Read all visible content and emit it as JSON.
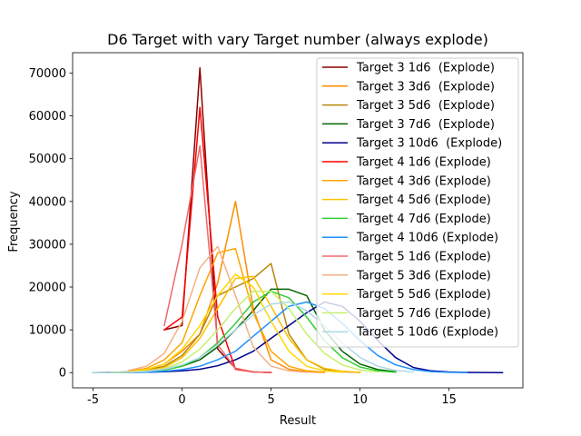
{
  "chart_data": {
    "type": "line",
    "title": "D6 Target with vary Target number (always explode)",
    "xlabel": "Result",
    "ylabel": "Frequency",
    "xlim": [
      -6.15,
      19.15
    ],
    "ylim": [
      -3560,
      74770
    ],
    "xticks": [
      -5,
      0,
      5,
      10,
      15
    ],
    "yticks": [
      0,
      10000,
      20000,
      30000,
      40000,
      50000,
      60000,
      70000
    ],
    "legend_position": "top-right",
    "grid": false,
    "series": [
      {
        "name": "Target 3 1d6  (Explode)",
        "color": "#8b0000",
        "x": [
          -1,
          0,
          1,
          2,
          3,
          4,
          5
        ],
        "y": [
          10000,
          11000,
          71200,
          5500,
          1000,
          150,
          20
        ]
      },
      {
        "name": "Target 3 3d6  (Explode)",
        "color": "#ff8c00",
        "x": [
          -3,
          -2,
          -1,
          0,
          1,
          2,
          3,
          4,
          5,
          6,
          7,
          8
        ],
        "y": [
          200,
          700,
          2000,
          5000,
          9000,
          21000,
          40000,
          15000,
          3000,
          800,
          200,
          50
        ]
      },
      {
        "name": "Target 3 5d6  (Explode)",
        "color": "#b8860b",
        "x": [
          -5,
          -4,
          -3,
          -2,
          -1,
          0,
          1,
          2,
          3,
          4,
          5,
          6,
          7,
          8,
          9,
          10
        ],
        "y": [
          10,
          50,
          200,
          600,
          1500,
          4000,
          9000,
          18000,
          20000,
          22000,
          25500,
          9000,
          3000,
          800,
          200,
          50
        ]
      },
      {
        "name": "Target 3 7d6  (Explode)",
        "color": "#006400",
        "x": [
          -5,
          -4,
          -3,
          -2,
          -1,
          0,
          1,
          2,
          3,
          4,
          5,
          6,
          7,
          8,
          9,
          10,
          11,
          12
        ],
        "y": [
          10,
          30,
          100,
          300,
          700,
          1500,
          3000,
          6000,
          10000,
          14500,
          19500,
          19500,
          18000,
          10000,
          5000,
          2000,
          700,
          200
        ]
      },
      {
        "name": "Target 3 10d6  (Explode)",
        "color": "#00008b",
        "x": [
          -5,
          -4,
          -3,
          -2,
          -1,
          0,
          1,
          2,
          3,
          4,
          5,
          6,
          7,
          8,
          9,
          10,
          11,
          12,
          13,
          14,
          15,
          16,
          17,
          18
        ],
        "y": [
          10,
          20,
          50,
          100,
          200,
          400,
          800,
          1600,
          3000,
          5000,
          8000,
          11000,
          14000,
          16500,
          15500,
          12000,
          7500,
          3500,
          1200,
          400,
          150,
          50,
          20,
          10
        ]
      },
      {
        "name": "Target 4 1d6 (Explode)",
        "color": "#ff0000",
        "x": [
          -1,
          0,
          1,
          2,
          3,
          4,
          5
        ],
        "y": [
          10000,
          13000,
          62000,
          13000,
          800,
          150,
          20
        ]
      },
      {
        "name": "Target 4 3d6 (Explode)",
        "color": "#ffa500",
        "x": [
          -3,
          -2,
          -1,
          0,
          1,
          2,
          3,
          4,
          5,
          6,
          7,
          8
        ],
        "y": [
          300,
          1000,
          3000,
          7000,
          18000,
          28000,
          29000,
          14000,
          5000,
          1500,
          400,
          100
        ]
      },
      {
        "name": "Target 4 5d6 (Explode)",
        "color": "#ffc000",
        "x": [
          -4,
          -3,
          -2,
          -1,
          0,
          1,
          2,
          3,
          4,
          5,
          6,
          7,
          8,
          9,
          10
        ],
        "y": [
          30,
          100,
          400,
          1200,
          3500,
          8000,
          15000,
          22000,
          22500,
          15500,
          8000,
          3000,
          1000,
          300,
          80
        ]
      },
      {
        "name": "Target 4 7d6 (Explode)",
        "color": "#32cd32",
        "x": [
          -4,
          -3,
          -2,
          -1,
          0,
          1,
          2,
          3,
          4,
          5,
          6,
          7,
          8,
          9,
          10,
          11,
          12
        ],
        "y": [
          20,
          60,
          200,
          600,
          1500,
          3500,
          7000,
          11500,
          16500,
          19000,
          17500,
          13000,
          7500,
          3500,
          1300,
          400,
          100
        ]
      },
      {
        "name": "Target 4 10d6 (Explode)",
        "color": "#1e90ff",
        "x": [
          -3,
          -2,
          -1,
          0,
          1,
          2,
          3,
          4,
          5,
          6,
          7,
          8,
          9,
          10,
          11,
          12,
          13,
          14,
          15,
          16
        ],
        "y": [
          30,
          100,
          300,
          700,
          1500,
          3000,
          5000,
          8500,
          12000,
          15500,
          16500,
          15000,
          11500,
          7500,
          4000,
          1800,
          700,
          250,
          80,
          20
        ]
      },
      {
        "name": "Target 5 1d6 (Explode)",
        "color": "#f06868",
        "x": [
          -1,
          0,
          1,
          2,
          3,
          4,
          5
        ],
        "y": [
          11000,
          30000,
          53000,
          6500,
          1000,
          150,
          20
        ]
      },
      {
        "name": "Target 5 3d6 (Explode)",
        "color": "#f4b183",
        "x": [
          -3,
          -2,
          -1,
          0,
          1,
          2,
          3,
          4,
          5,
          6,
          7
        ],
        "y": [
          500,
          1500,
          4500,
          12000,
          24500,
          29500,
          18000,
          6000,
          1500,
          400,
          100
        ]
      },
      {
        "name": "Target 5 5d6 (Explode)",
        "color": "#ffd700",
        "x": [
          -3,
          -2,
          -1,
          0,
          1,
          2,
          3,
          4,
          5,
          6,
          7,
          8,
          9
        ],
        "y": [
          200,
          700,
          2000,
          5500,
          11000,
          18000,
          23000,
          20000,
          12000,
          5000,
          1500,
          400,
          100
        ]
      },
      {
        "name": "Target 5 7d6 (Explode)",
        "color": "#c7f06b",
        "x": [
          -4,
          -3,
          -2,
          -1,
          0,
          1,
          2,
          3,
          4,
          5,
          6,
          7,
          8,
          9,
          10,
          11
        ],
        "y": [
          20,
          80,
          300,
          900,
          2500,
          5500,
          10000,
          15000,
          19000,
          19000,
          15000,
          9000,
          4500,
          1800,
          600,
          150
        ]
      },
      {
        "name": "Target 5 10d6 (Explode)",
        "color": "#add8e6",
        "x": [
          -5,
          -4,
          -3,
          -2,
          -1,
          0,
          1,
          2,
          3,
          4,
          5,
          6,
          7,
          8,
          9,
          10,
          11,
          12,
          13
        ],
        "y": [
          10,
          30,
          100,
          300,
          800,
          1800,
          3500,
          6500,
          10000,
          13500,
          16000,
          16500,
          14500,
          11000,
          7000,
          3500,
          1500,
          500,
          150
        ]
      }
    ]
  }
}
